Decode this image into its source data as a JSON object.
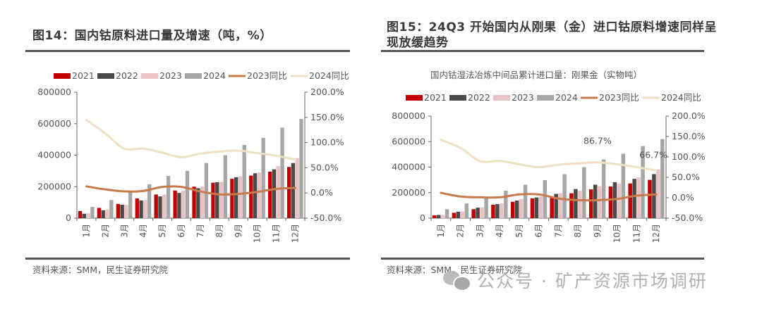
{
  "chart_data": [
    {
      "type": "bar",
      "id": "fig14",
      "title": "图14：国内钴原料进口量及增速（吨，%）",
      "subtitle": "",
      "categories": [
        "1月",
        "2月",
        "3月",
        "4月",
        "5月",
        "6月",
        "7月",
        "8月",
        "9月",
        "10月",
        "11月",
        "12月"
      ],
      "series": [
        {
          "name": "2021",
          "kind": "bar",
          "color": "#c00000",
          "values": [
            45000,
            65000,
            90000,
            125000,
            150000,
            175000,
            200000,
            225000,
            250000,
            270000,
            295000,
            325000
          ]
        },
        {
          "name": "2022",
          "kind": "bar",
          "color": "#4a4a4a",
          "values": [
            28000,
            50000,
            85000,
            112000,
            138000,
            160000,
            190000,
            228000,
            260000,
            285000,
            310000,
            350000
          ]
        },
        {
          "name": "2023",
          "kind": "bar",
          "color": "#e8c2c4",
          "values": [
            30000,
            55000,
            85000,
            115000,
            150000,
            175000,
            200000,
            230000,
            265000,
            290000,
            330000,
            380000
          ]
        },
        {
          "name": "2024",
          "kind": "bar",
          "color": "#a6a6a6",
          "values": [
            72000,
            115000,
            170000,
            215000,
            268000,
            300000,
            350000,
            400000,
            465000,
            510000,
            575000,
            630000
          ]
        },
        {
          "name": "2023同比",
          "kind": "line",
          "axis": "right",
          "color": "#c87a4a",
          "values": [
            13,
            7,
            3,
            4,
            12,
            12,
            3,
            -3,
            -2,
            2,
            8,
            10
          ]
        },
        {
          "name": "2024同比",
          "kind": "line",
          "axis": "right",
          "color": "#eee0c0",
          "values": [
            145,
            118,
            88,
            88,
            80,
            71,
            78,
            82,
            84,
            79,
            74,
            66
          ]
        }
      ],
      "ylim": [
        0,
        800000
      ],
      "yticks": [
        "0",
        "200000",
        "400000",
        "600000",
        "800000"
      ],
      "y2lim": [
        -50,
        200
      ],
      "y2ticks": [
        "-50.0%",
        "0.0%",
        "50.0%",
        "100.0%",
        "150.0%",
        "200.0%"
      ],
      "annotations": [],
      "legend": "top",
      "source": "资料来源：SMM，民生证券研究院"
    },
    {
      "type": "bar",
      "id": "fig15",
      "title": "图15：24Q3 开始国内从刚果（金）进口钴原料增速同样呈现放缓趋势",
      "subtitle": "国内钴湿法冶炼中间品累计进口量：刚果金（实物吨）",
      "categories": [
        "1月",
        "2月",
        "3月",
        "4月",
        "5月",
        "6月",
        "7月",
        "8月",
        "9月",
        "10月",
        "11月",
        "12月"
      ],
      "series": [
        {
          "name": "2021",
          "kind": "bar",
          "color": "#c00000",
          "values": [
            22000,
            42000,
            70000,
            105000,
            128000,
            155000,
            165000,
            195000,
            225000,
            248000,
            272000,
            300000
          ]
        },
        {
          "name": "2022",
          "kind": "bar",
          "color": "#4a4a4a",
          "values": [
            25000,
            50000,
            82000,
            110000,
            138000,
            162000,
            190000,
            228000,
            262000,
            282000,
            308000,
            345000
          ]
        },
        {
          "name": "2023",
          "kind": "bar",
          "color": "#e8c2c4",
          "values": [
            25000,
            52000,
            85000,
            115000,
            150000,
            170000,
            195000,
            215000,
            250000,
            270000,
            320000,
            380000
          ]
        },
        {
          "name": "2024",
          "kind": "bar",
          "color": "#a6a6a6",
          "values": [
            70000,
            115000,
            160000,
            215000,
            262000,
            298000,
            345000,
            400000,
            460000,
            505000,
            565000,
            620000
          ]
        },
        {
          "name": "2023同比",
          "kind": "line",
          "axis": "right",
          "color": "#c87a4a",
          "values": [
            12,
            3,
            1,
            1,
            8,
            8,
            -2,
            -6,
            -6,
            -3,
            5,
            8
          ]
        },
        {
          "name": "2024同比",
          "kind": "line",
          "axis": "right",
          "color": "#eee0c0",
          "values": [
            142,
            122,
            90,
            90,
            82,
            75,
            81,
            84,
            86.7,
            82,
            75,
            66.7
          ]
        }
      ],
      "ylim": [
        0,
        800000
      ],
      "yticks": [
        "0",
        "200000",
        "400000",
        "600000",
        "800000"
      ],
      "y2lim": [
        -50,
        200
      ],
      "y2ticks": [
        "-50.0%",
        "0.0%",
        "50.0%",
        "100.0%",
        "150.0%",
        "200.0%"
      ],
      "annotations": [
        {
          "text": "86.7%",
          "category": "9月",
          "series": "2024同比"
        },
        {
          "text": "66.7%",
          "category": "12月",
          "series": "2024同比"
        }
      ],
      "legend": "top",
      "source": "资料来源：SMM，民生证券研究院"
    }
  ],
  "watermark": {
    "icon": "wechat-icon",
    "text": "公众号 · 矿产资源市场调研"
  }
}
